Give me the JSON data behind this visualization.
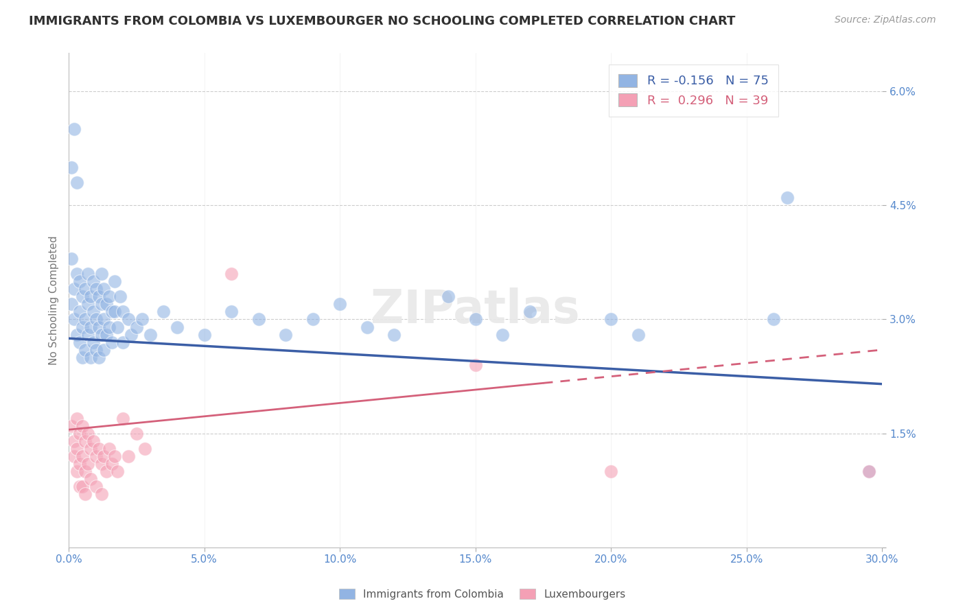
{
  "title": "IMMIGRANTS FROM COLOMBIA VS LUXEMBOURGER NO SCHOOLING COMPLETED CORRELATION CHART",
  "source": "Source: ZipAtlas.com",
  "ylabel": "No Schooling Completed",
  "xlim": [
    0.0,
    0.3
  ],
  "ylim": [
    0.0,
    0.065
  ],
  "xticks": [
    0.0,
    0.05,
    0.1,
    0.15,
    0.2,
    0.25,
    0.3
  ],
  "xticklabels": [
    "0.0%",
    "5.0%",
    "10.0%",
    "15.0%",
    "20.0%",
    "25.0%",
    "30.0%"
  ],
  "yticks": [
    0.0,
    0.015,
    0.03,
    0.045,
    0.06
  ],
  "yticklabels": [
    "",
    "1.5%",
    "3.0%",
    "4.5%",
    "6.0%"
  ],
  "blue_color": "#92B4E3",
  "pink_color": "#F4A0B5",
  "blue_line_color": "#3B5EA6",
  "pink_line_color": "#D4607A",
  "r_blue": -0.156,
  "n_blue": 75,
  "r_pink": 0.296,
  "n_pink": 39,
  "legend_label_blue": "Immigrants from Colombia",
  "legend_label_pink": "Luxembourgers",
  "background_color": "#ffffff",
  "grid_color": "#cccccc",
  "title_color": "#303030",
  "axis_label_color": "#5588cc",
  "blue_line_start_y": 0.0275,
  "blue_line_end_y": 0.0215,
  "pink_line_start_y": 0.0155,
  "pink_line_end_y": 0.026,
  "blue_points": [
    [
      0.001,
      0.05
    ],
    [
      0.002,
      0.055
    ],
    [
      0.003,
      0.048
    ],
    [
      0.001,
      0.038
    ],
    [
      0.002,
      0.034
    ],
    [
      0.003,
      0.036
    ],
    [
      0.001,
      0.032
    ],
    [
      0.002,
      0.03
    ],
    [
      0.003,
      0.028
    ],
    [
      0.004,
      0.035
    ],
    [
      0.004,
      0.031
    ],
    [
      0.004,
      0.027
    ],
    [
      0.005,
      0.033
    ],
    [
      0.005,
      0.029
    ],
    [
      0.005,
      0.025
    ],
    [
      0.006,
      0.034
    ],
    [
      0.006,
      0.03
    ],
    [
      0.006,
      0.026
    ],
    [
      0.007,
      0.036
    ],
    [
      0.007,
      0.032
    ],
    [
      0.007,
      0.028
    ],
    [
      0.008,
      0.033
    ],
    [
      0.008,
      0.029
    ],
    [
      0.008,
      0.025
    ],
    [
      0.009,
      0.035
    ],
    [
      0.009,
      0.031
    ],
    [
      0.009,
      0.027
    ],
    [
      0.01,
      0.034
    ],
    [
      0.01,
      0.03
    ],
    [
      0.01,
      0.026
    ],
    [
      0.011,
      0.033
    ],
    [
      0.011,
      0.029
    ],
    [
      0.011,
      0.025
    ],
    [
      0.012,
      0.036
    ],
    [
      0.012,
      0.032
    ],
    [
      0.012,
      0.028
    ],
    [
      0.013,
      0.034
    ],
    [
      0.013,
      0.03
    ],
    [
      0.013,
      0.026
    ],
    [
      0.014,
      0.032
    ],
    [
      0.014,
      0.028
    ],
    [
      0.015,
      0.033
    ],
    [
      0.015,
      0.029
    ],
    [
      0.016,
      0.031
    ],
    [
      0.016,
      0.027
    ],
    [
      0.017,
      0.035
    ],
    [
      0.017,
      0.031
    ],
    [
      0.018,
      0.029
    ],
    [
      0.019,
      0.033
    ],
    [
      0.02,
      0.031
    ],
    [
      0.02,
      0.027
    ],
    [
      0.022,
      0.03
    ],
    [
      0.023,
      0.028
    ],
    [
      0.025,
      0.029
    ],
    [
      0.027,
      0.03
    ],
    [
      0.03,
      0.028
    ],
    [
      0.035,
      0.031
    ],
    [
      0.04,
      0.029
    ],
    [
      0.05,
      0.028
    ],
    [
      0.06,
      0.031
    ],
    [
      0.07,
      0.03
    ],
    [
      0.08,
      0.028
    ],
    [
      0.09,
      0.03
    ],
    [
      0.1,
      0.032
    ],
    [
      0.11,
      0.029
    ],
    [
      0.12,
      0.028
    ],
    [
      0.14,
      0.033
    ],
    [
      0.15,
      0.03
    ],
    [
      0.16,
      0.028
    ],
    [
      0.17,
      0.031
    ],
    [
      0.2,
      0.03
    ],
    [
      0.21,
      0.028
    ],
    [
      0.26,
      0.03
    ],
    [
      0.265,
      0.046
    ],
    [
      0.295,
      0.01
    ]
  ],
  "pink_points": [
    [
      0.001,
      0.016
    ],
    [
      0.002,
      0.014
    ],
    [
      0.002,
      0.012
    ],
    [
      0.003,
      0.017
    ],
    [
      0.003,
      0.013
    ],
    [
      0.003,
      0.01
    ],
    [
      0.004,
      0.015
    ],
    [
      0.004,
      0.011
    ],
    [
      0.004,
      0.008
    ],
    [
      0.005,
      0.016
    ],
    [
      0.005,
      0.012
    ],
    [
      0.005,
      0.008
    ],
    [
      0.006,
      0.014
    ],
    [
      0.006,
      0.01
    ],
    [
      0.006,
      0.007
    ],
    [
      0.007,
      0.015
    ],
    [
      0.007,
      0.011
    ],
    [
      0.008,
      0.013
    ],
    [
      0.008,
      0.009
    ],
    [
      0.009,
      0.014
    ],
    [
      0.01,
      0.012
    ],
    [
      0.01,
      0.008
    ],
    [
      0.011,
      0.013
    ],
    [
      0.012,
      0.011
    ],
    [
      0.012,
      0.007
    ],
    [
      0.013,
      0.012
    ],
    [
      0.014,
      0.01
    ],
    [
      0.015,
      0.013
    ],
    [
      0.016,
      0.011
    ],
    [
      0.017,
      0.012
    ],
    [
      0.018,
      0.01
    ],
    [
      0.02,
      0.017
    ],
    [
      0.022,
      0.012
    ],
    [
      0.025,
      0.015
    ],
    [
      0.028,
      0.013
    ],
    [
      0.06,
      0.036
    ],
    [
      0.15,
      0.024
    ],
    [
      0.2,
      0.01
    ],
    [
      0.295,
      0.01
    ]
  ]
}
